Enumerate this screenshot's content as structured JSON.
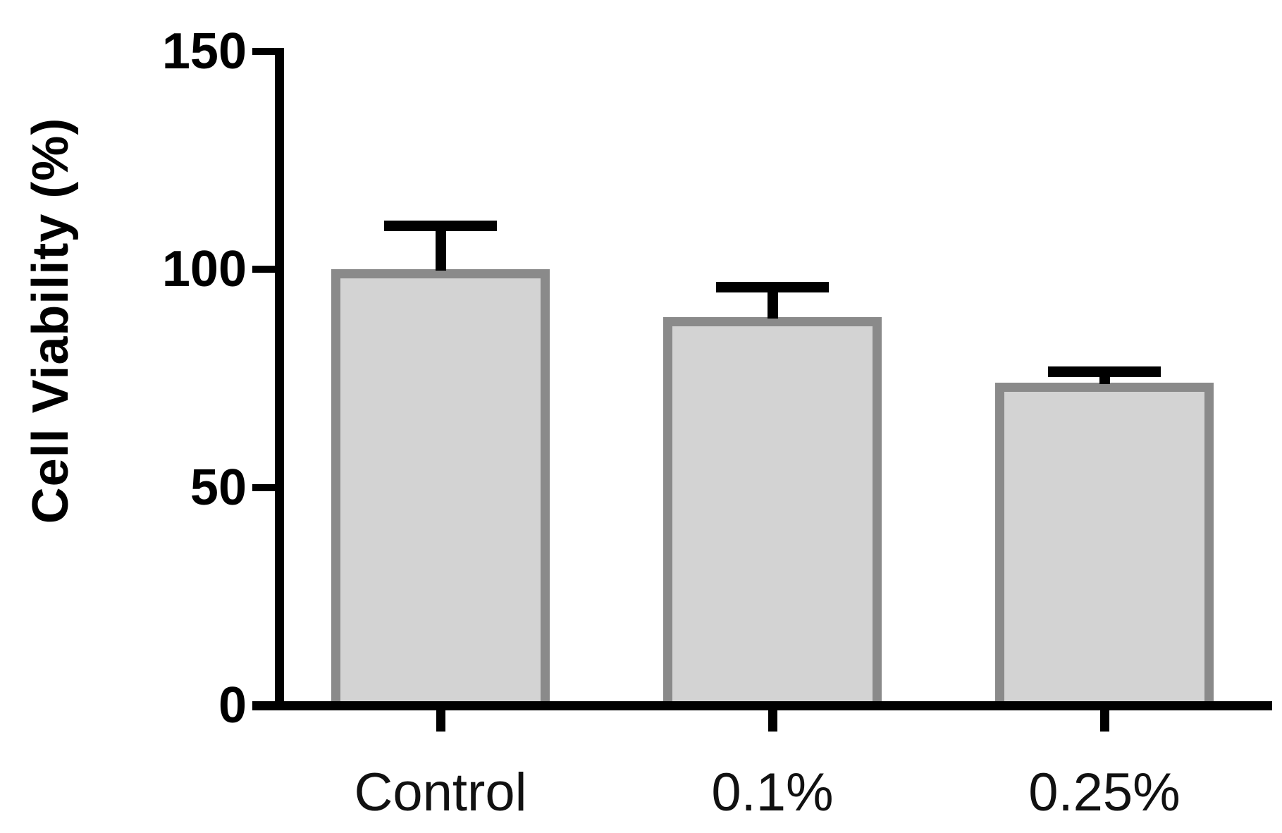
{
  "chart_data": {
    "type": "bar",
    "title": "",
    "xlabel": "",
    "ylabel": "Cell Viability (%)",
    "categories": [
      "Control",
      "0.1%",
      "0.25%"
    ],
    "values": [
      100,
      89,
      74
    ],
    "errors_upper": [
      10,
      7,
      2.5
    ],
    "error_style": "upper-only T caps, black",
    "ylim": [
      0,
      150
    ],
    "yticks": [
      0,
      50,
      100,
      150
    ],
    "grid": false,
    "legend_position": "none",
    "bar_fill_color": "#d3d3d3",
    "bar_border_color": "#8a8a8a",
    "axis_color": "#000000",
    "error_bar_color": "#000000",
    "background_color": "#ffffff"
  }
}
